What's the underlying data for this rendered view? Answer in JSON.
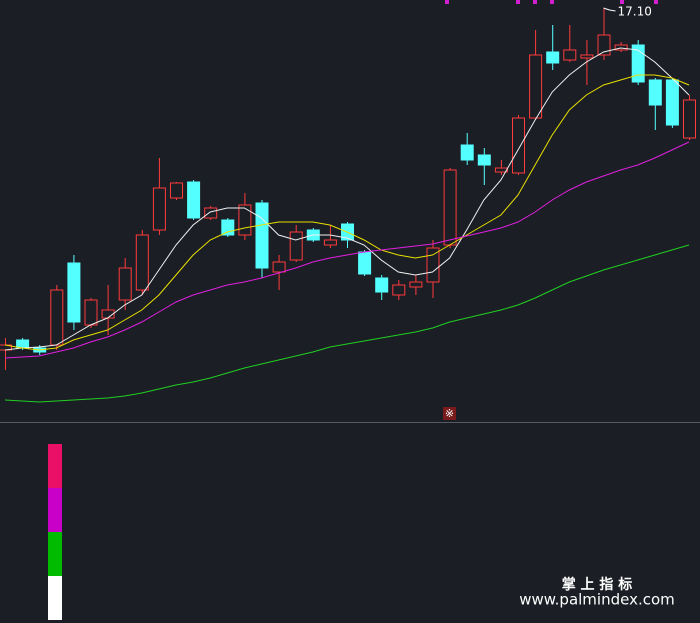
{
  "chart_data": {
    "type": "candlestick",
    "up_color": "#ff3b3b",
    "down_color": "#54ffff",
    "ylim": [
      12.96,
      17.18
    ],
    "high_label": "17.10",
    "open": [
      13.68,
      13.78,
      13.7,
      13.73,
      14.55,
      13.93,
      14.0,
      14.18,
      14.28,
      14.88,
      15.2,
      15.36,
      15.0,
      14.98,
      14.83,
      15.15,
      14.46,
      14.58,
      14.88,
      14.73,
      14.94,
      14.66,
      14.4,
      14.23,
      14.31,
      14.36,
      14.73,
      15.73,
      15.63,
      15.46,
      15.45,
      16.0,
      16.66,
      16.58,
      16.6,
      16.63,
      16.68,
      16.73,
      16.38,
      16.38,
      15.8
    ],
    "high": [
      13.8,
      13.8,
      13.73,
      14.33,
      14.63,
      14.2,
      14.33,
      14.6,
      14.88,
      15.6,
      15.36,
      15.38,
      15.12,
      15.0,
      15.25,
      15.18,
      14.63,
      14.93,
      14.9,
      14.93,
      14.96,
      14.68,
      14.43,
      14.38,
      14.43,
      14.78,
      15.5,
      15.85,
      15.7,
      15.58,
      16.03,
      16.88,
      16.93,
      16.93,
      16.78,
      17.1,
      16.76,
      16.78,
      16.4,
      16.4,
      16.23
    ],
    "low": [
      13.48,
      13.68,
      13.63,
      13.68,
      13.88,
      13.9,
      13.83,
      14.08,
      14.23,
      14.83,
      15.18,
      14.98,
      14.98,
      14.81,
      14.78,
      14.4,
      14.28,
      14.56,
      14.76,
      14.7,
      14.7,
      14.42,
      14.18,
      14.18,
      14.23,
      14.2,
      14.7,
      15.53,
      15.33,
      15.43,
      15.43,
      15.98,
      16.48,
      16.56,
      16.33,
      16.58,
      16.66,
      16.33,
      15.88,
      15.9,
      15.78
    ],
    "close": [
      13.73,
      13.7,
      13.66,
      14.28,
      13.96,
      14.18,
      14.08,
      14.5,
      14.83,
      15.3,
      15.35,
      15.0,
      15.1,
      14.83,
      15.13,
      14.5,
      14.56,
      14.86,
      14.78,
      14.78,
      14.78,
      14.44,
      14.26,
      14.33,
      14.36,
      14.7,
      15.48,
      15.58,
      15.53,
      15.5,
      16.0,
      16.63,
      16.55,
      16.68,
      16.63,
      16.83,
      16.73,
      16.36,
      16.13,
      15.93,
      16.18
    ],
    "series": [
      {
        "color": "#f0f0f0",
        "values": [
          13.68,
          13.7,
          13.71,
          13.73,
          13.83,
          13.93,
          14.0,
          14.13,
          14.23,
          14.48,
          14.73,
          14.93,
          15.06,
          15.1,
          15.1,
          15.0,
          14.83,
          14.78,
          14.83,
          14.83,
          14.8,
          14.73,
          14.58,
          14.46,
          14.43,
          14.46,
          14.6,
          14.88,
          15.18,
          15.38,
          15.68,
          15.98,
          16.26,
          16.43,
          16.56,
          16.66,
          16.7,
          16.68,
          16.56,
          16.4,
          16.23
        ]
      },
      {
        "color": "#e8e000",
        "values": [
          13.73,
          13.7,
          13.68,
          13.7,
          13.78,
          13.83,
          13.88,
          13.98,
          14.08,
          14.23,
          14.43,
          14.63,
          14.78,
          14.86,
          14.9,
          14.93,
          14.96,
          14.96,
          14.96,
          14.93,
          14.86,
          14.78,
          14.68,
          14.63,
          14.6,
          14.63,
          14.73,
          14.83,
          14.93,
          15.03,
          15.23,
          15.53,
          15.83,
          16.08,
          16.23,
          16.33,
          16.38,
          16.43,
          16.43,
          16.4,
          16.33
        ]
      },
      {
        "color": "#e020e0",
        "values": [
          13.6,
          13.61,
          13.62,
          13.66,
          13.7,
          13.76,
          13.81,
          13.88,
          13.96,
          14.06,
          14.16,
          14.23,
          14.28,
          14.33,
          14.36,
          14.4,
          14.45,
          14.5,
          14.56,
          14.6,
          14.63,
          14.66,
          14.68,
          14.7,
          14.72,
          14.74,
          14.78,
          14.82,
          14.86,
          14.9,
          14.96,
          15.06,
          15.18,
          15.28,
          15.36,
          15.42,
          15.48,
          15.53,
          15.6,
          15.68,
          15.76
        ]
      },
      {
        "color": "#20d020",
        "values": [
          13.18,
          13.17,
          13.16,
          13.17,
          13.18,
          13.19,
          13.2,
          13.22,
          13.25,
          13.29,
          13.33,
          13.36,
          13.4,
          13.45,
          13.5,
          13.54,
          13.58,
          13.62,
          13.66,
          13.71,
          13.74,
          13.77,
          13.8,
          13.83,
          13.86,
          13.9,
          13.96,
          14.0,
          14.04,
          14.08,
          14.13,
          14.2,
          14.28,
          14.36,
          14.42,
          14.48,
          14.53,
          14.58,
          14.63,
          14.68,
          14.73
        ]
      }
    ]
  },
  "watermark": {
    "title": "掌 上 指 标",
    "url": "www.palmindex.com"
  }
}
